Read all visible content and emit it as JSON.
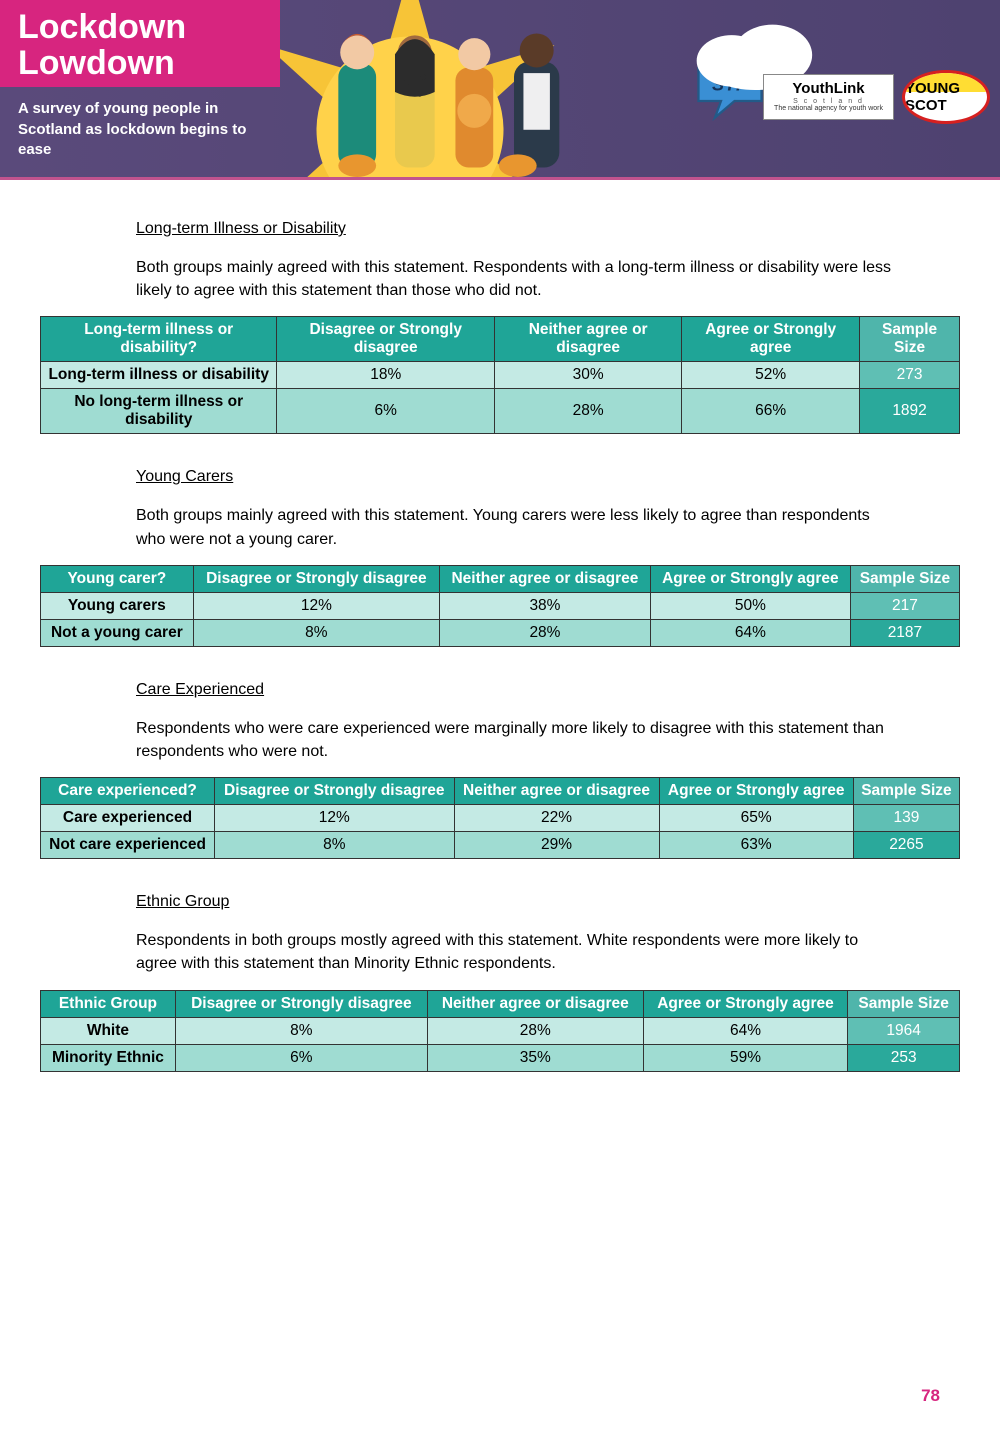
{
  "banner": {
    "title_line1": "Lockdown",
    "title_line2": "Lowdown",
    "subtitle": "A survey of young people in Scotland as lockdown begins to ease",
    "logos": {
      "youthlink_top": "YouthLink",
      "youthlink_sub": "S c o t l a n d",
      "youthlink_tag": "The national agency for youth work",
      "youngscot": "YOUNG SCOT",
      "syp": "SYP"
    }
  },
  "colors": {
    "banner_bg": "#5b4a7a",
    "brand_pink": "#d7257f",
    "table_header": "#1fa597",
    "table_header_sample": "#4fb5ab",
    "row_light": "#c4eae4",
    "row_light_sample": "#5fbfb4",
    "row_dark": "#9fdcd2",
    "row_dark_sample": "#2aa99b",
    "text": "#000000",
    "page_bg": "#ffffff"
  },
  "sections": [
    {
      "heading": "Long-term Illness or Disability",
      "body": "Both groups mainly agreed with this statement. Respondents with a long-term illness or disability were less likely to agree with this statement than those who did not.",
      "tall": true,
      "columns": [
        "Long-term illness or disability?",
        "Disagree or Strongly disagree",
        "Neither agree or disagree",
        "Agree or Strongly agree",
        "Sample Size"
      ],
      "rows": [
        {
          "label": "Long-term illness or disability",
          "cells": [
            "18%",
            "30%",
            "52%",
            "273"
          ],
          "shade": "light"
        },
        {
          "label": "No long-term illness or disability",
          "cells": [
            "6%",
            "28%",
            "66%",
            "1892"
          ],
          "shade": "dark"
        }
      ]
    },
    {
      "heading": "Young Carers",
      "body": "Both groups mainly agreed with this statement. Young carers were less likely to agree than respondents who were not a young carer.",
      "tall": false,
      "columns": [
        "Young carer?",
        "Disagree or Strongly disagree",
        "Neither agree or disagree",
        "Agree or Strongly agree",
        "Sample Size"
      ],
      "rows": [
        {
          "label": "Young carers",
          "cells": [
            "12%",
            "38%",
            "50%",
            "217"
          ],
          "shade": "light"
        },
        {
          "label": "Not a young carer",
          "cells": [
            "8%",
            "28%",
            "64%",
            "2187"
          ],
          "shade": "dark"
        }
      ]
    },
    {
      "heading": "Care Experienced",
      "body": "Respondents who were care experienced were marginally more likely to disagree with this statement than respondents who were not.",
      "tall": false,
      "columns": [
        "Care experienced?",
        "Disagree or Strongly disagree",
        "Neither agree or disagree",
        "Agree or Strongly agree",
        "Sample Size"
      ],
      "rows": [
        {
          "label": "Care experienced",
          "cells": [
            "12%",
            "22%",
            "65%",
            "139"
          ],
          "shade": "light"
        },
        {
          "label": "Not care experienced",
          "cells": [
            "8%",
            "29%",
            "63%",
            "2265"
          ],
          "shade": "dark"
        }
      ]
    },
    {
      "heading": "Ethnic Group",
      "body": "Respondents in both groups mostly agreed with this statement. White respondents were more likely to agree with this statement than Minority Ethnic respondents.",
      "tall": false,
      "columns": [
        "Ethnic Group",
        "Disagree or Strongly disagree",
        "Neither agree or disagree",
        "Agree or Strongly agree",
        "Sample Size"
      ],
      "rows": [
        {
          "label": "White",
          "cells": [
            "8%",
            "28%",
            "64%",
            "1964"
          ],
          "shade": "light"
        },
        {
          "label": "Minority Ethnic",
          "cells": [
            "6%",
            "35%",
            "59%",
            "253"
          ],
          "shade": "dark"
        }
      ]
    }
  ],
  "page_number": "78"
}
